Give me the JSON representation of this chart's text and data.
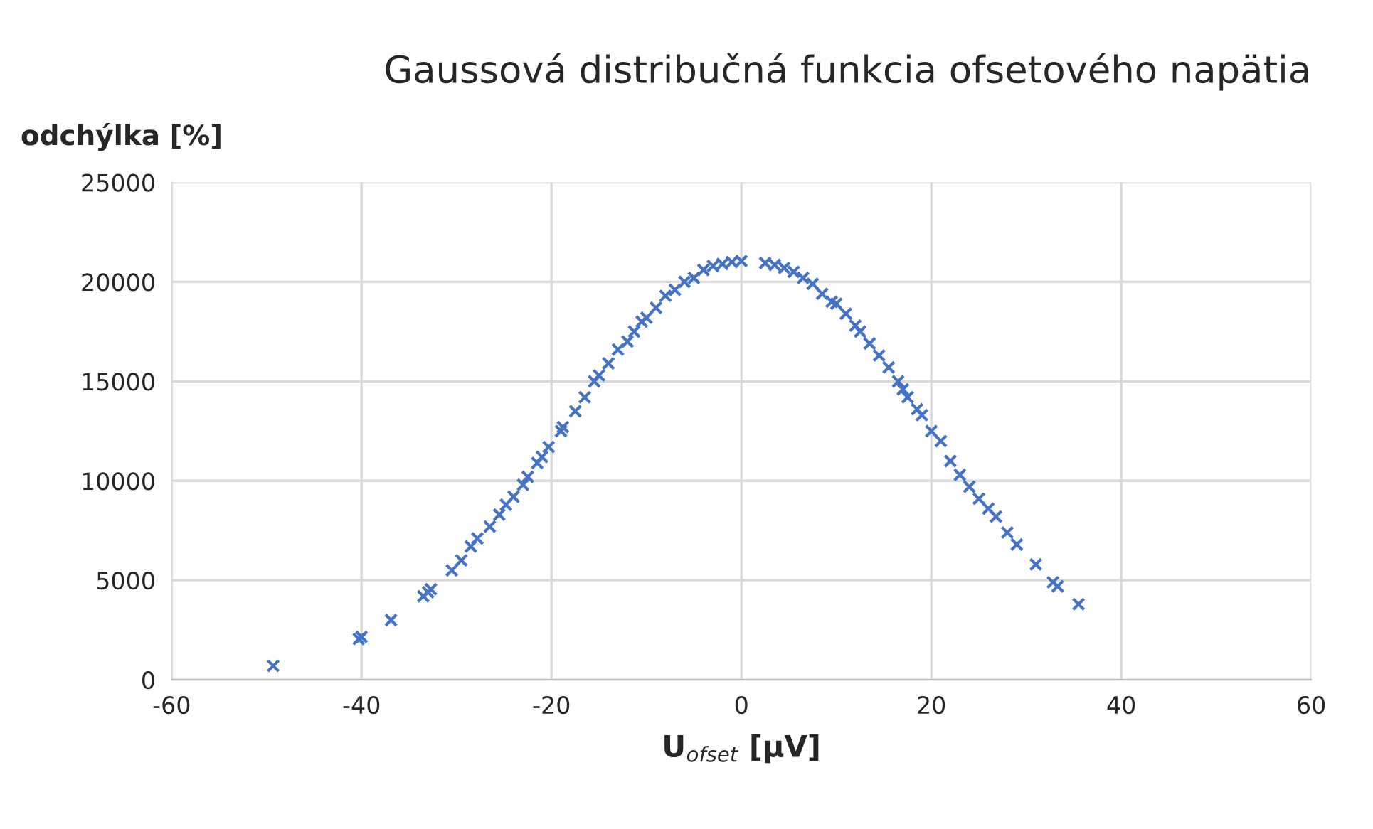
{
  "chart_data": {
    "type": "scatter",
    "title": "Gaussová distribučná funkcia ofsetového napätia",
    "xlabel": "U$_{ofset}$ [µV]",
    "ylabel": "odchýlka [%]",
    "xlim": [
      -60,
      60
    ],
    "xticks": [
      -60,
      -40,
      -20,
      0,
      20,
      40,
      60
    ],
    "ylim": [
      0,
      25000
    ],
    "yticks": [
      0,
      5000,
      10000,
      15000,
      20000,
      25000
    ],
    "grid": true,
    "marker": "cross",
    "series": [
      {
        "color": "#4472c4",
        "x": [
          -49.3,
          -40.3,
          -40,
          -36.9,
          -33.5,
          -33,
          -32.7,
          -30.5,
          -29.5,
          -28.5,
          -27.8,
          -26.5,
          -25.5,
          -24.8,
          -24,
          -23,
          -22.5,
          -21.5,
          -21,
          -20.3,
          -19,
          -18.8,
          -17.5,
          -16.5,
          -15.5,
          -15,
          -14,
          -13,
          -12,
          -11.3,
          -10.5,
          -10,
          -9,
          -8,
          -7,
          -6,
          -5,
          -4,
          -3,
          -2,
          -1,
          0,
          2.5,
          3.5,
          4.5,
          5.5,
          6.5,
          7.5,
          8.5,
          9.5,
          10,
          11,
          12,
          12.5,
          13.5,
          14.5,
          15.5,
          16.5,
          17,
          17.5,
          18.5,
          19,
          20,
          21,
          22,
          23,
          24,
          25,
          26,
          26.8,
          28,
          29,
          31,
          32.8,
          33.3,
          35.5
        ],
        "values": [
          700,
          2050,
          2150,
          3000,
          4200,
          4400,
          4550,
          5500,
          6000,
          6700,
          7100,
          7700,
          8300,
          8800,
          9200,
          9800,
          10200,
          10900,
          11200,
          11700,
          12500,
          12700,
          13500,
          14200,
          15000,
          15300,
          15900,
          16600,
          17000,
          17500,
          18000,
          18200,
          18700,
          19300,
          19600,
          20000,
          20200,
          20600,
          20800,
          20900,
          21000,
          21050,
          20950,
          20850,
          20700,
          20500,
          20200,
          19900,
          19400,
          19000,
          18900,
          18400,
          17800,
          17500,
          16900,
          16300,
          15700,
          15000,
          14600,
          14200,
          13600,
          13300,
          12500,
          12000,
          11000,
          10300,
          9700,
          9100,
          8600,
          8200,
          7400,
          6800,
          5800,
          4900,
          4700,
          3800
        ]
      }
    ]
  }
}
